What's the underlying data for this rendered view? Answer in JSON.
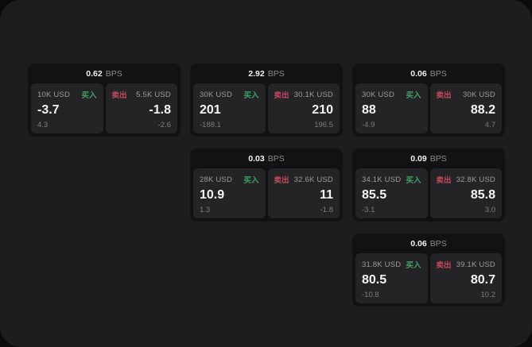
{
  "labels": {
    "bps_suffix": "BPS",
    "buy_label": "买入",
    "sell_label": "卖出"
  },
  "colors": {
    "panel_bg": "#1d1d1f",
    "card_bg": "#121214",
    "side_bg": "#242427",
    "buy_green": "#3da463",
    "sell_red": "#c2485c"
  },
  "cards": [
    {
      "bps": "0.62",
      "buy": {
        "amount": "10K USD",
        "value": "-3.7",
        "sub": "4.3"
      },
      "sell": {
        "amount": "5.5K USD",
        "value": "-1.8",
        "sub": "-2.6"
      }
    },
    {
      "bps": "2.92",
      "buy": {
        "amount": "30K USD",
        "value": "201",
        "sub": "-188.1"
      },
      "sell": {
        "amount": "30.1K USD",
        "value": "210",
        "sub": "196.5"
      }
    },
    {
      "bps": "0.06",
      "buy": {
        "amount": "30K USD",
        "value": "88",
        "sub": "-4.9"
      },
      "sell": {
        "amount": "30K USD",
        "value": "88.2",
        "sub": "4.7"
      }
    },
    {
      "bps": "0.03",
      "buy": {
        "amount": "28K USD",
        "value": "10.9",
        "sub": "1.3"
      },
      "sell": {
        "amount": "32.6K USD",
        "value": "11",
        "sub": "-1.8"
      }
    },
    {
      "bps": "0.09",
      "buy": {
        "amount": "34.1K USD",
        "value": "85.5",
        "sub": "-3.1"
      },
      "sell": {
        "amount": "32.8K USD",
        "value": "85.8",
        "sub": "3.0"
      }
    },
    {
      "bps": "0.06",
      "buy": {
        "amount": "31.8K USD",
        "value": "80.5",
        "sub": "-10.8"
      },
      "sell": {
        "amount": "39.1K USD",
        "value": "80.7",
        "sub": "10.2"
      }
    }
  ]
}
